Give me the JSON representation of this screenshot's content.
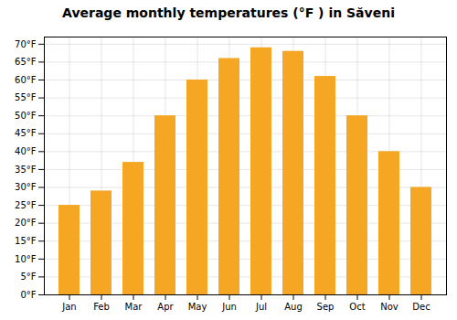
{
  "chart_data": {
    "type": "bar",
    "title": "Average monthly temperatures (°F ) in Săveni",
    "categories": [
      "Jan",
      "Feb",
      "Mar",
      "Apr",
      "May",
      "Jun",
      "Jul",
      "Aug",
      "Sep",
      "Oct",
      "Nov",
      "Dec"
    ],
    "values": [
      25,
      29,
      37,
      50,
      60,
      66,
      69,
      68,
      61,
      50,
      40,
      30
    ],
    "color": "#F5A623",
    "ylim": [
      0,
      72
    ],
    "yticks": [
      {
        "value": 0,
        "label": "0°F"
      },
      {
        "value": 5,
        "label": "5°F"
      },
      {
        "value": 10,
        "label": "10°F"
      },
      {
        "value": 15,
        "label": "15°F"
      },
      {
        "value": 20,
        "label": "20°F"
      },
      {
        "value": 25,
        "label": "25°F"
      },
      {
        "value": 30,
        "label": "30°F"
      },
      {
        "value": 35,
        "label": "35°F"
      },
      {
        "value": 40,
        "label": "40°F"
      },
      {
        "value": 45,
        "label": "45°F"
      },
      {
        "value": 50,
        "label": "50°F"
      },
      {
        "value": 55,
        "label": "55°F"
      },
      {
        "value": 60,
        "label": "60°F"
      },
      {
        "value": 65,
        "label": "65°F"
      },
      {
        "value": 70,
        "label": "70°F"
      }
    ],
    "grid": true
  }
}
